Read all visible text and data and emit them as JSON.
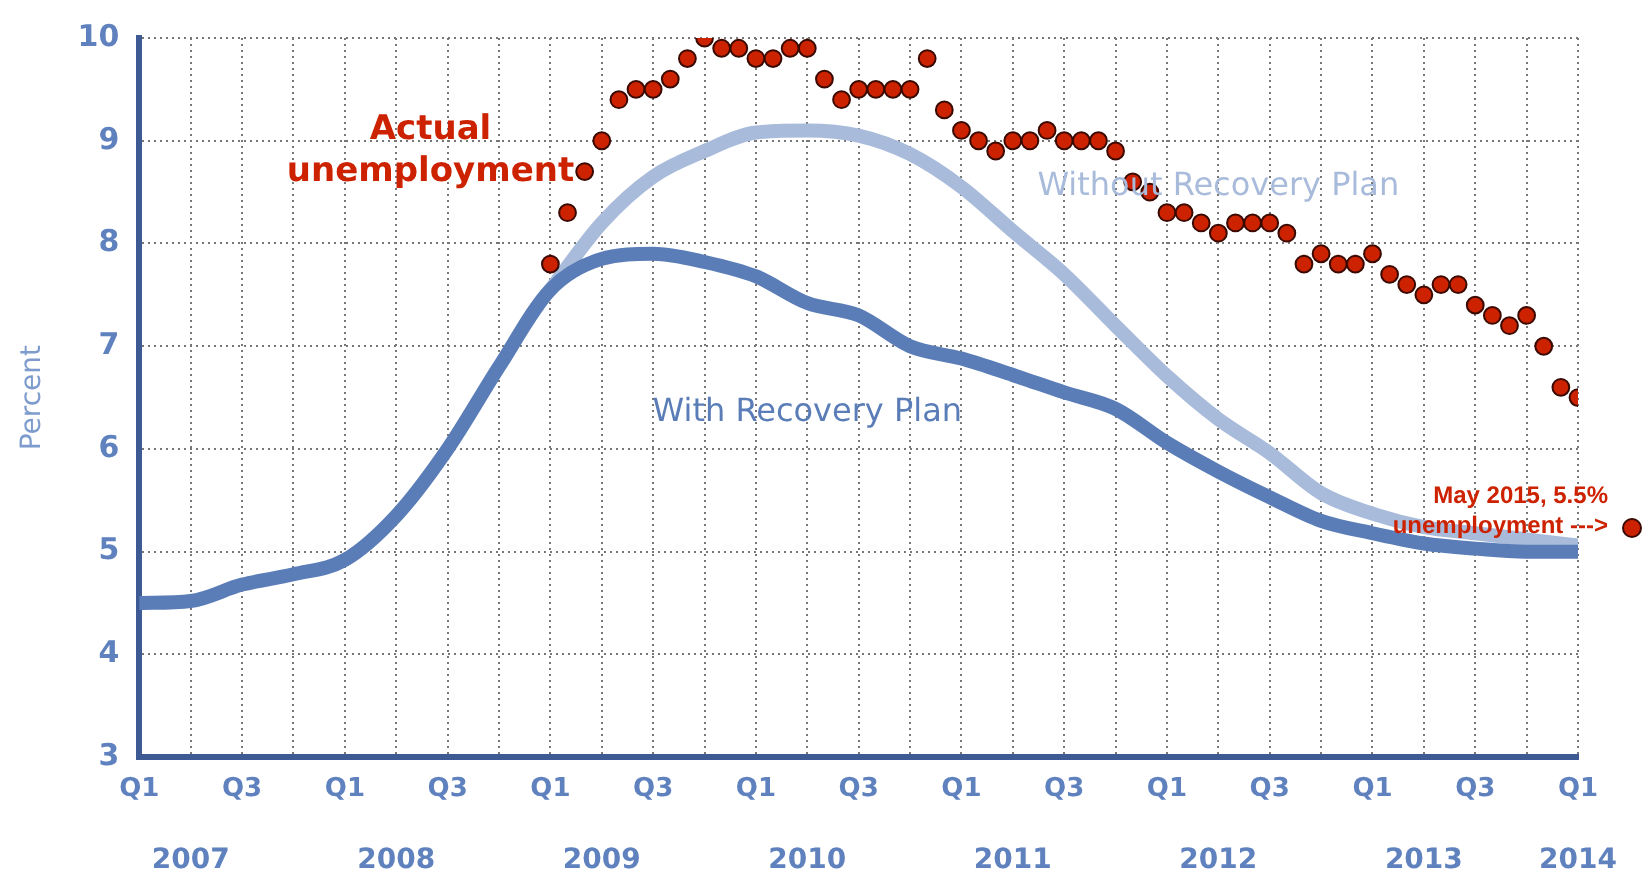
{
  "chart_data": {
    "type": "line",
    "ylabel": "Percent",
    "xlim": [
      "2007-01",
      "2014-01"
    ],
    "ylim": [
      3,
      10
    ],
    "xticks": [
      {
        "value": "2007-01",
        "label": "Q1"
      },
      {
        "value": "2007-04",
        "label": null
      },
      {
        "value": "2007-07",
        "label": "Q3"
      },
      {
        "value": "2007-10",
        "label": null
      },
      {
        "value": "2008-01",
        "label": "Q1"
      },
      {
        "value": "2008-04",
        "label": null
      },
      {
        "value": "2008-07",
        "label": "Q3"
      },
      {
        "value": "2008-10",
        "label": null
      },
      {
        "value": "2009-01",
        "label": "Q1"
      },
      {
        "value": "2009-04",
        "label": null
      },
      {
        "value": "2009-07",
        "label": "Q3"
      },
      {
        "value": "2009-10",
        "label": null
      },
      {
        "value": "2010-01",
        "label": "Q1"
      },
      {
        "value": "2010-04",
        "label": null
      },
      {
        "value": "2010-07",
        "label": "Q3"
      },
      {
        "value": "2010-10",
        "label": null
      },
      {
        "value": "2011-01",
        "label": "Q1"
      },
      {
        "value": "2011-04",
        "label": null
      },
      {
        "value": "2011-07",
        "label": "Q3"
      },
      {
        "value": "2011-10",
        "label": null
      },
      {
        "value": "2012-01",
        "label": "Q1"
      },
      {
        "value": "2012-04",
        "label": null
      },
      {
        "value": "2012-07",
        "label": "Q3"
      },
      {
        "value": "2012-10",
        "label": null
      },
      {
        "value": "2013-01",
        "label": "Q1"
      },
      {
        "value": "2013-04",
        "label": null
      },
      {
        "value": "2013-07",
        "label": "Q3"
      },
      {
        "value": "2013-10",
        "label": null
      },
      {
        "value": "2014-01",
        "label": "Q1"
      }
    ],
    "x2lim": [
      "2007-01",
      "2014-01"
    ],
    "x2ticks": [
      {
        "value": "2007-04",
        "label": "2007"
      },
      {
        "value": "2008-04",
        "label": "2008"
      },
      {
        "value": "2009-04",
        "label": "2009"
      },
      {
        "value": "2010-04",
        "label": "2010"
      },
      {
        "value": "2011-04",
        "label": "2011"
      },
      {
        "value": "2012-04",
        "label": "2012"
      },
      {
        "value": "2013-04",
        "label": "2013"
      },
      {
        "value": "2014-01",
        "label": "2014"
      }
    ],
    "yticks": [
      3,
      4,
      5,
      6,
      7,
      8,
      9,
      10
    ],
    "grid": true,
    "legend": false,
    "x": [
      "2007-01",
      "2007-04",
      "2007-07",
      "2007-10",
      "2008-01",
      "2008-04",
      "2008-07",
      "2008-10",
      "2009-01",
      "2009-04",
      "2009-07",
      "2009-10",
      "2010-01",
      "2010-04",
      "2010-07",
      "2010-10",
      "2011-01",
      "2011-04",
      "2011-07",
      "2011-10",
      "2012-01",
      "2012-04",
      "2012-07",
      "2012-10",
      "2013-01",
      "2013-04",
      "2013-07",
      "2013-10",
      "2014-01"
    ],
    "series": [
      {
        "name": "Without Recovery Plan",
        "color": "#a9bbdb",
        "values": [
          null,
          null,
          null,
          null,
          null,
          null,
          null,
          null,
          7.55,
          8.2,
          8.65,
          8.9,
          9.08,
          9.1,
          9.05,
          8.87,
          8.55,
          8.12,
          7.7,
          7.2,
          6.71,
          6.29,
          5.96,
          5.57,
          5.37,
          5.24,
          5.18,
          5.12,
          5.06
        ]
      },
      {
        "name": "With Recovery Plan",
        "color": "#5a7db8",
        "values": [
          4.5,
          4.52,
          4.68,
          4.78,
          4.92,
          5.35,
          6.0,
          6.8,
          7.55,
          7.85,
          7.9,
          7.82,
          7.68,
          7.42,
          7.3,
          7.0,
          6.88,
          6.72,
          6.55,
          6.39,
          6.06,
          5.78,
          5.53,
          5.3,
          5.18,
          5.08,
          5.03,
          5.0,
          5.0
        ]
      },
      {
        "name": "Actual unemployment",
        "type": "scatter",
        "color": "#cc2200",
        "marker": "circle",
        "x": [
          "2009-01",
          "2009-02",
          "2009-03",
          "2009-04",
          "2009-05",
          "2009-06",
          "2009-07",
          "2009-08",
          "2009-09",
          "2009-10",
          "2009-11",
          "2009-12",
          "2010-01",
          "2010-02",
          "2010-03",
          "2010-04",
          "2010-05",
          "2010-06",
          "2010-07",
          "2010-08",
          "2010-09",
          "2010-10",
          "2010-11",
          "2010-12",
          "2011-01",
          "2011-02",
          "2011-03",
          "2011-04",
          "2011-05",
          "2011-06",
          "2011-07",
          "2011-08",
          "2011-09",
          "2011-10",
          "2011-11",
          "2011-12",
          "2012-01",
          "2012-02",
          "2012-03",
          "2012-04",
          "2012-05",
          "2012-06",
          "2012-07",
          "2012-08",
          "2012-09",
          "2012-10",
          "2012-11",
          "2012-12",
          "2013-01",
          "2013-02",
          "2013-03",
          "2013-04",
          "2013-05",
          "2013-06",
          "2013-07",
          "2013-08",
          "2013-09",
          "2013-10",
          "2013-11",
          "2013-12",
          "2014-01"
        ],
        "values": [
          7.8,
          8.3,
          8.7,
          9.0,
          9.4,
          9.5,
          9.5,
          9.6,
          9.8,
          10.0,
          9.9,
          9.9,
          9.8,
          9.8,
          9.9,
          9.9,
          9.6,
          9.4,
          9.5,
          9.5,
          9.5,
          9.5,
          9.8,
          9.3,
          9.1,
          9.0,
          8.9,
          9.0,
          9.0,
          9.1,
          9.0,
          9.0,
          9.0,
          8.9,
          8.6,
          8.5,
          8.3,
          8.3,
          8.2,
          8.1,
          8.2,
          8.2,
          8.2,
          8.1,
          7.8,
          7.9,
          7.8,
          7.8,
          7.9,
          7.7,
          7.6,
          7.5,
          7.6,
          7.6,
          7.4,
          7.3,
          7.2,
          7.3,
          7.0,
          6.6,
          6.5
        ]
      }
    ],
    "annotations": [
      "May 2015, 5.5% unemployment --->"
    ]
  }
}
